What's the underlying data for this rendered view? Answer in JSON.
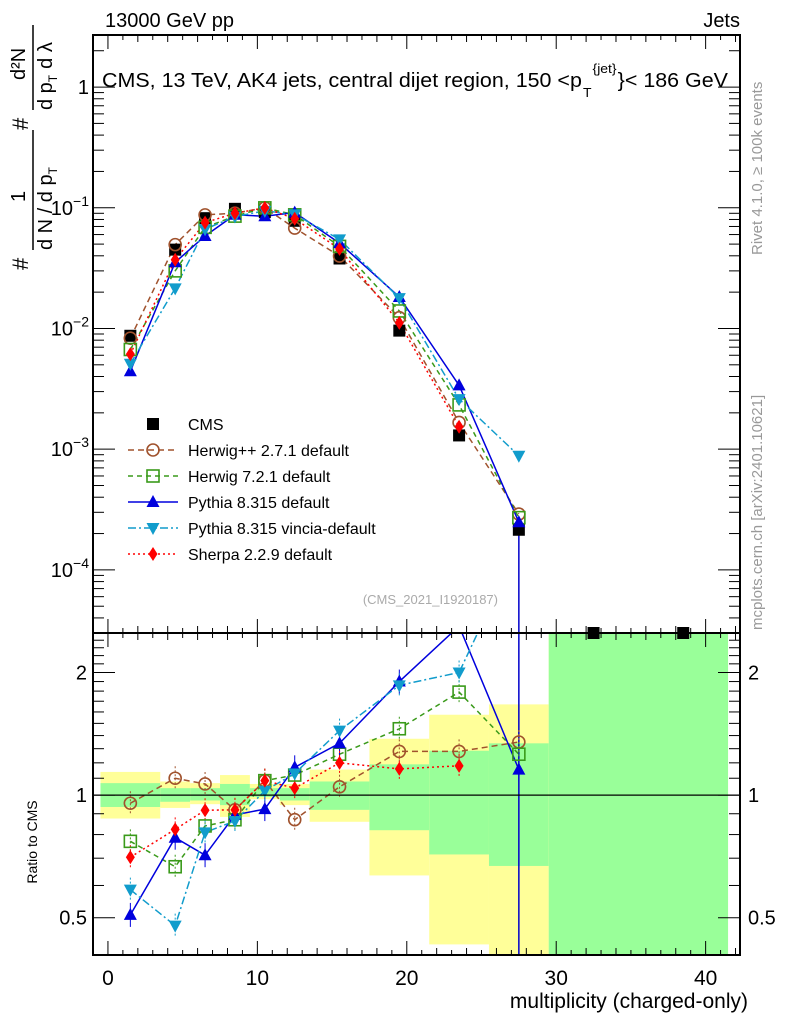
{
  "header": {
    "left": "13000 GeV pp",
    "right": "Jets",
    "title": "CMS, 13 TeV, AK4 jets, central dijet region, 150 <p",
    "title_sup": "{jet}",
    "title_sub": "T",
    "title_end": "}< 186 GeV",
    "side_top": "Rivet 4.1.0, ≥ 100k events",
    "side_bottom": "mcplots.cern.ch [arXiv:2401.10621]",
    "analysis_id": "(CMS_2021_I1920187)"
  },
  "chart_data": [
    {
      "type": "line",
      "panel": "main",
      "ylabel": "# 1/dN/dp_T # d²N/dp_T dλ",
      "ylabel_parts": [
        "#",
        "1",
        "d N / d p",
        "T",
        "#",
        "d p",
        "T",
        "d²N",
        "d λ"
      ],
      "yscale": "log",
      "ylim": [
        3e-05,
        2.7
      ],
      "xlim": [
        -1,
        42.3
      ],
      "ytick_labels": [
        {
          "v": 1,
          "label": "1"
        },
        {
          "v": 0.1,
          "label": "10",
          "exp": "−1"
        },
        {
          "v": 0.01,
          "label": "10",
          "exp": "−2"
        },
        {
          "v": 0.001,
          "label": "10",
          "exp": "−3"
        },
        {
          "v": 0.0001,
          "label": "10",
          "exp": "−4"
        }
      ],
      "x": [
        1.5,
        4.5,
        6.5,
        8.5,
        10.5,
        12.5,
        15.5,
        19.5,
        23.5,
        27.5,
        32.5,
        38.5
      ],
      "cms": [
        0.0087,
        0.045,
        0.082,
        0.098,
        0.092,
        0.078,
        0.038,
        0.0096,
        0.0013,
        0.000215,
        2e-05,
        2e-05
      ],
      "legend_position": "bottom-left",
      "series": [
        {
          "name": "CMS",
          "color": "#000000",
          "marker": "square",
          "dash": "none"
        },
        {
          "name": "Herwig++ 2.7.1 default",
          "color": "#a0522d",
          "marker": "circle-open",
          "dash": "6,4",
          "ratio": [
            0.955,
            1.1,
            1.065,
            0.92,
            1.085,
            0.87,
            1.048,
            1.28,
            1.28,
            1.35
          ]
        },
        {
          "name": "Herwig 7.2.1 default",
          "color": "#3a9a1a",
          "marker": "square-open",
          "dash": "5,4",
          "ratio": [
            0.77,
            0.667,
            0.84,
            0.87,
            1.085,
            1.12,
            1.26,
            1.455,
            1.79,
            1.26
          ]
        },
        {
          "name": "Pythia 8.315 default",
          "color": "#0000dd",
          "marker": "triangle-up",
          "dash": "none",
          "ratio": [
            0.508,
            0.786,
            0.712,
            0.894,
            0.924,
            1.17,
            1.34,
            1.9,
            2.6,
            1.155
          ]
        },
        {
          "name": "Pythia 8.315 vincia-default",
          "color": "#119ccc",
          "marker": "triangle-down",
          "dash": "8,3,2,3",
          "ratio": [
            0.586,
            0.478,
            0.81,
            0.864,
            1.025,
            1.13,
            1.44,
            1.86,
            2.0,
            4.1
          ]
        },
        {
          "name": "Sherpa 2.2.9 default",
          "color": "#ff0000",
          "marker": "diamond",
          "dash": "2,3",
          "ratio": [
            0.704,
            0.824,
            0.918,
            0.92,
            1.085,
            1.04,
            1.2,
            1.16,
            1.18,
            null
          ]
        }
      ]
    },
    {
      "type": "line",
      "panel": "ratio",
      "ylabel": "Ratio to CMS",
      "xlabel": "multiplicity (charged-only)",
      "yscale": "log",
      "ylim": [
        0.405,
        2.5
      ],
      "xticks": [
        0,
        10,
        20,
        30,
        40
      ],
      "ytick_labels": [
        {
          "v": 2,
          "label": "2"
        },
        {
          "v": 1,
          "label": "1"
        },
        {
          "v": 0.5,
          "label": "0.5"
        }
      ],
      "band_colors": {
        "total": "#ffff99",
        "stat": "#99ff99"
      },
      "bands": [
        {
          "x0": -0.5,
          "x1": 3.5,
          "total": [
            0.876,
            1.14
          ],
          "stat": [
            0.935,
            1.07
          ]
        },
        {
          "x0": 3.5,
          "x1": 5.5,
          "total": [
            0.93,
            1.08
          ],
          "stat": [
            0.963,
            1.04
          ]
        },
        {
          "x0": 5.5,
          "x1": 7.5,
          "total": [
            0.95,
            1.07
          ],
          "stat": [
            0.97,
            1.04
          ]
        },
        {
          "x0": 7.5,
          "x1": 9.5,
          "total": [
            0.884,
            1.12
          ],
          "stat": [
            0.945,
            1.065
          ]
        },
        {
          "x0": 9.5,
          "x1": 11.5,
          "total": [
            0.977,
            1.065
          ],
          "stat": [
            0.99,
            1.04
          ]
        },
        {
          "x0": 11.5,
          "x1": 13.5,
          "total": [
            0.945,
            1.065
          ],
          "stat": [
            0.97,
            1.04
          ]
        },
        {
          "x0": 13.5,
          "x1": 17.5,
          "total": [
            0.86,
            1.155
          ],
          "stat": [
            0.92,
            1.08
          ]
        },
        {
          "x0": 17.5,
          "x1": 21.5,
          "total": [
            0.635,
            1.375
          ],
          "stat": [
            0.82,
            1.19
          ]
        },
        {
          "x0": 21.5,
          "x1": 25.5,
          "total": [
            0.43,
            1.575
          ],
          "stat": [
            0.715,
            1.285
          ]
        },
        {
          "x0": 25.5,
          "x1": 29.5,
          "total": [
            0.3,
            1.67
          ],
          "stat": [
            0.67,
            1.34
          ]
        },
        {
          "x0": 29.5,
          "x1": 41.5,
          "total": [
            0.1,
            10
          ],
          "stat": [
            0.1,
            10
          ]
        }
      ]
    }
  ]
}
